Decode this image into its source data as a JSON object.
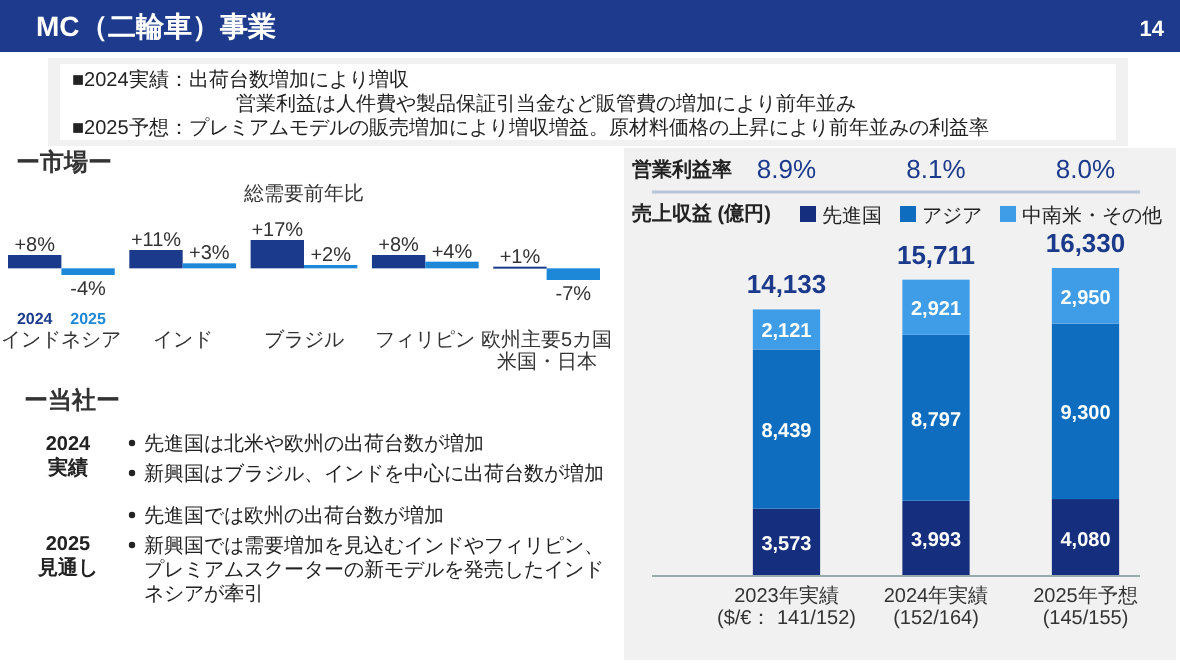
{
  "chart_data": [
    {
      "type": "other",
      "title": "MC（二輪車）事業",
      "annotations": [
        "■2024実績：出荷台数増加により増収",
        "営業利益は人件費や製品保証引当金など販管費の増加により前年並み",
        "■2025予想：プレミアムモデルの販売増加により増収増益。原材料価格の上昇により前年並みの利益率",
        "14"
      ]
    },
    {
      "type": "bar",
      "title": "ー市場ー",
      "subtitle": "総需要前年比",
      "categories": [
        "インドネシア",
        "インド",
        "ブラジル",
        "フィリピン",
        "欧州主要5カ国米国・日本"
      ],
      "series": [
        {
          "name": "2024",
          "color": "#1b3a8c",
          "values": [
            8,
            11,
            17,
            8,
            1
          ],
          "value_labels": [
            "+8%",
            "+11%",
            "+17%",
            "+8%",
            "+1%"
          ]
        },
        {
          "name": "2025",
          "color": "#1e88d8",
          "values": [
            -4,
            3,
            2,
            4,
            -7
          ],
          "value_labels": [
            "-4%",
            "+3%",
            "+2%",
            "+4%",
            "-7%"
          ]
        }
      ]
    },
    {
      "type": "other",
      "title": "ー当社ー",
      "annotations": [
        "2024\n実績",
        "先進国は北米や欧州の出荷台数が増加",
        "新興国はブラジル、インドを中心に出荷台数が増加",
        "2025\n見通し",
        "先進国では欧州の出荷台数が増加",
        "新興国では需要増加を見込むインドやフィリピン、プレミアムスクーターの新モデルを発売したインドネシアが牽引"
      ]
    },
    {
      "type": "bar",
      "stacked": true,
      "data_labels": true,
      "legend": "top right",
      "ylabel": "売上収益 (億円)",
      "categories": [
        "2023年実績($/€： 141/152)",
        "2024年実績(152/164)",
        "2025年予想(145/155)"
      ],
      "series": [
        {
          "name": "先進国",
          "color": "#152f7e",
          "values": [
            3573,
            3993,
            4080
          ],
          "value_labels": [
            "3,573",
            "3,993",
            "4,080"
          ]
        },
        {
          "name": "アジア",
          "color": "#0f6dc0",
          "values": [
            8439,
            8797,
            9300
          ],
          "value_labels": [
            "8,439",
            "8,797",
            "9,300"
          ]
        },
        {
          "name": "中南米・その他",
          "color": "#3f9de8",
          "values": [
            2121,
            2921,
            2950
          ],
          "value_labels": [
            "2,121",
            "2,921",
            "2,950"
          ]
        }
      ],
      "totals": [
        "14,133",
        "15,711",
        "16,330"
      ],
      "annotations": [
        "営業利益率",
        "8.9%",
        "8.1%",
        "8.0%"
      ]
    }
  ]
}
